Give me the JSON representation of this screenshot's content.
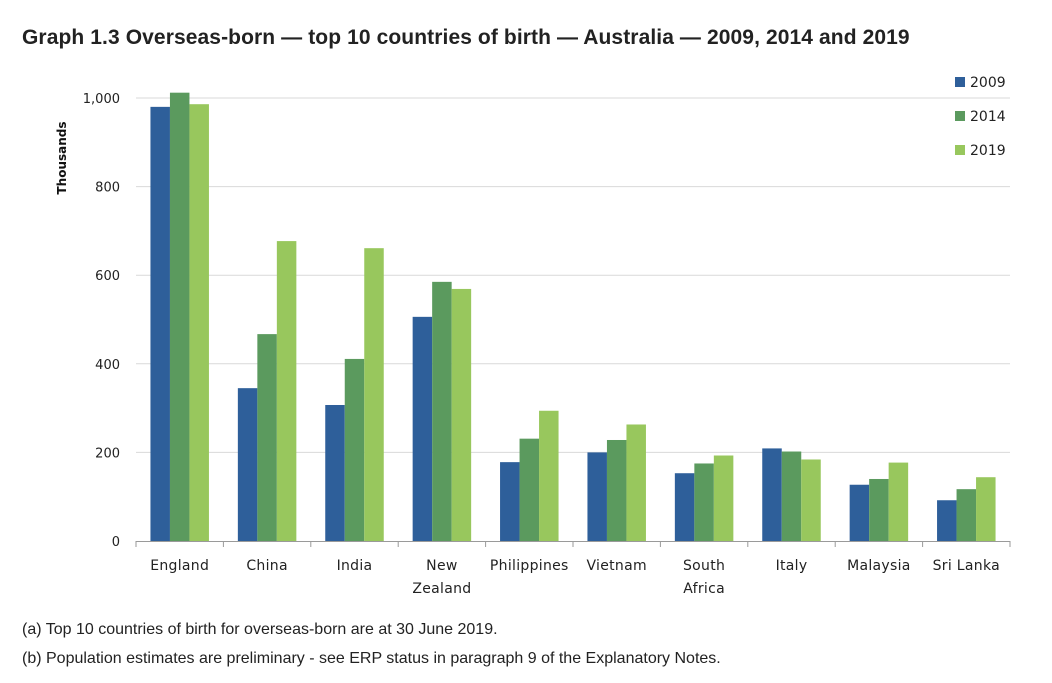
{
  "title": "Graph 1.3 Overseas-born — top 10 countries of birth — Australia — 2009, 2014 and 2019",
  "notes": {
    "a": "(a) Top 10 countries of birth for overseas-born are at 30 June 2019.",
    "b": "(b) Population estimates are preliminary - see ERP status in paragraph 9 of the Explanatory Notes."
  },
  "chart_data": {
    "type": "bar",
    "title": "Graph 1.3 Overseas-born — top 10 countries of birth — Australia — 2009, 2014 and 2019",
    "xlabel": "",
    "ylabel": "Thousands",
    "ylim": [
      0,
      1000
    ],
    "yticks": [
      0,
      200,
      400,
      600,
      800,
      1000
    ],
    "ytick_labels": [
      "0",
      "200",
      "400",
      "600",
      "800",
      "1,000"
    ],
    "grid": true,
    "legend_position": "top-right",
    "categories": [
      [
        "England"
      ],
      [
        "China"
      ],
      [
        "India"
      ],
      [
        "New",
        "Zealand"
      ],
      [
        "Philippines"
      ],
      [
        "Vietnam"
      ],
      [
        "South",
        "Africa"
      ],
      [
        "Italy"
      ],
      [
        "Malaysia"
      ],
      [
        "Sri Lanka"
      ]
    ],
    "series": [
      {
        "name": "2009",
        "color": "#2e5f9a",
        "values": [
          980,
          345,
          307,
          506,
          178,
          200,
          153,
          209,
          127,
          92
        ]
      },
      {
        "name": "2014",
        "color": "#5b9a5e",
        "values": [
          1012,
          467,
          411,
          585,
          231,
          228,
          175,
          202,
          140,
          117
        ]
      },
      {
        "name": "2019",
        "color": "#98c75d",
        "values": [
          986,
          677,
          661,
          569,
          294,
          263,
          193,
          184,
          177,
          144
        ]
      }
    ]
  }
}
